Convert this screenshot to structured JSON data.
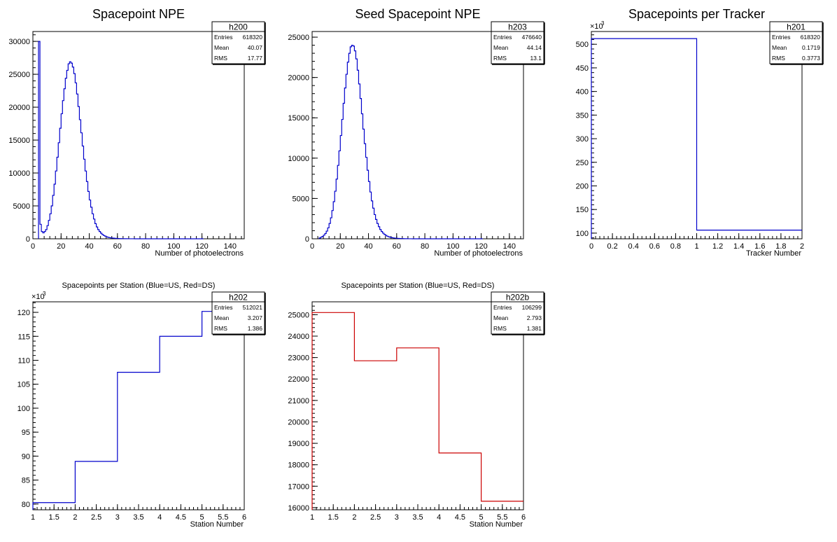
{
  "line_color_default": "#0000cc",
  "chart_data": [
    {
      "type": "histogram",
      "title": "Spacepoint NPE",
      "xlabel": "Number of photoelectrons",
      "ylabel": "",
      "xlim": [
        0,
        150
      ],
      "ylim": [
        0,
        31500
      ],
      "xticks": [
        0,
        20,
        40,
        60,
        80,
        100,
        120,
        140
      ],
      "yticks": [
        0,
        5000,
        10000,
        15000,
        20000,
        25000,
        30000
      ],
      "color": "#0000cc",
      "stats": {
        "name": "h200",
        "entries_label": "Entries",
        "entries": "618320",
        "mean_label": "Mean",
        "mean": "40.07",
        "rms_label": "RMS",
        "rms": "17.77"
      },
      "bin_width": 1,
      "x_start": 4,
      "values": [
        30000,
        2200,
        1100,
        900,
        1100,
        1400,
        2000,
        2800,
        3800,
        5000,
        6600,
        8300,
        10300,
        12400,
        14600,
        16800,
        19000,
        21000,
        22800,
        24400,
        25600,
        26600,
        26900,
        26700,
        26100,
        25100,
        23700,
        22000,
        20100,
        18100,
        16100,
        14100,
        12100,
        10300,
        8700,
        7200,
        5900,
        4800,
        3800,
        3000,
        2300,
        1800,
        1400,
        1100,
        850,
        650,
        500,
        400,
        300,
        230,
        180,
        140,
        110,
        90,
        70,
        55,
        45,
        35,
        28,
        22,
        18,
        14,
        11,
        9,
        7,
        6,
        5,
        4,
        3,
        3,
        2,
        2,
        1,
        1,
        1,
        1,
        1,
        0,
        0,
        0,
        0,
        0,
        0,
        0,
        0,
        0,
        0,
        0,
        0,
        0,
        0,
        0,
        0,
        0,
        0,
        0,
        0,
        0,
        0,
        0,
        0,
        0,
        0,
        0,
        0,
        0,
        0,
        0,
        0,
        0,
        0,
        0,
        0,
        0,
        0,
        0,
        0
      ]
    },
    {
      "type": "histogram",
      "title": "Seed Spacepoint NPE",
      "xlabel": "Number of photoelectrons",
      "ylabel": "",
      "xlim": [
        0,
        150
      ],
      "ylim": [
        0,
        25700
      ],
      "xticks": [
        0,
        20,
        40,
        60,
        80,
        100,
        120,
        140
      ],
      "yticks": [
        0,
        5000,
        10000,
        15000,
        20000,
        25000
      ],
      "color": "#0000cc",
      "stats": {
        "name": "h203",
        "entries_label": "Entries",
        "entries": "476640",
        "mean_label": "Mean",
        "mean": "44.14",
        "rms_label": "RMS",
        "rms": "13.1"
      },
      "bin_width": 1,
      "x_start": 5,
      "values": [
        100,
        200,
        300,
        450,
        650,
        950,
        1350,
        1900,
        2600,
        3500,
        4600,
        5900,
        7400,
        9100,
        10900,
        12800,
        14800,
        16800,
        18700,
        20400,
        21900,
        23000,
        23800,
        24000,
        23900,
        23300,
        22300,
        20900,
        19200,
        17400,
        15500,
        13600,
        11800,
        10100,
        8500,
        7100,
        5800,
        4700,
        3800,
        3000,
        2400,
        1900,
        1500,
        1150,
        900,
        700,
        540,
        420,
        320,
        250,
        190,
        150,
        115,
        90,
        70,
        55,
        42,
        32,
        25,
        20,
        15,
        12,
        9,
        7,
        5,
        4,
        3,
        2,
        2,
        1,
        1,
        1,
        0,
        0,
        0,
        0,
        0,
        0,
        0,
        0,
        0,
        0,
        0,
        0,
        0,
        0,
        0,
        0,
        0,
        0,
        0,
        0,
        0,
        0,
        0,
        0,
        0,
        0,
        0,
        0,
        0,
        0,
        0,
        0,
        0,
        0,
        0,
        0,
        0,
        0,
        0,
        0,
        0,
        0,
        0,
        0
      ]
    },
    {
      "type": "histogram",
      "title": "Spacepoints per Tracker",
      "xlabel": "Tracker Number",
      "ylabel": "",
      "y_multiplier": "×10",
      "y_multiplier_exp": "3",
      "xlim": [
        0,
        2
      ],
      "ylim": [
        88,
        527
      ],
      "xticks": [
        0,
        0.2,
        0.4,
        0.6,
        0.8,
        1,
        1.2,
        1.4,
        1.6,
        1.8,
        2
      ],
      "yticks": [
        100,
        150,
        200,
        250,
        300,
        350,
        400,
        450,
        500
      ],
      "color": "#0000cc",
      "stats": {
        "name": "h201",
        "entries_label": "Entries",
        "entries": "618320",
        "mean_label": "Mean",
        "mean": "0.1719",
        "rms_label": "RMS",
        "rms": "0.3773"
      },
      "bin_width": 1,
      "x_start": 0,
      "values": [
        512,
        106.3
      ]
    },
    {
      "type": "histogram",
      "title": "Spacepoints per Station (Blue=US, Red=DS)",
      "xlabel": "Station Number",
      "ylabel": "",
      "y_multiplier": "×10",
      "y_multiplier_exp": "3",
      "xlim": [
        1,
        6
      ],
      "ylim": [
        78.8,
        122.2
      ],
      "xticks": [
        1,
        1.5,
        2,
        2.5,
        3,
        3.5,
        4,
        4.5,
        5,
        5.5,
        6
      ],
      "yticks": [
        80,
        85,
        90,
        95,
        100,
        105,
        110,
        115,
        120
      ],
      "color": "#0000cc",
      "stats": {
        "name": "h202",
        "entries_label": "Entries",
        "entries": "512021",
        "mean_label": "Mean",
        "mean": "3.207",
        "rms_label": "RMS",
        "rms": "1.386"
      },
      "bin_width": 1,
      "x_start": 1,
      "values": [
        80.3,
        88.9,
        107.5,
        115,
        120.2
      ]
    },
    {
      "type": "histogram",
      "title": "Spacepoints per Station (Blue=US, Red=DS)",
      "xlabel": "Station Number",
      "ylabel": "",
      "xlim": [
        1,
        6
      ],
      "ylim": [
        15900,
        25600
      ],
      "xticks": [
        1,
        1.5,
        2,
        2.5,
        3,
        3.5,
        4,
        4.5,
        5,
        5.5,
        6
      ],
      "yticks": [
        16000,
        17000,
        18000,
        19000,
        20000,
        21000,
        22000,
        23000,
        24000,
        25000
      ],
      "color": "#cc0000",
      "stats": {
        "name": "h202b",
        "entries_label": "Entries",
        "entries": "106299",
        "mean_label": "Mean",
        "mean": "2.793",
        "rms_label": "RMS",
        "rms": "1.381"
      },
      "bin_width": 1,
      "x_start": 1,
      "values": [
        25100,
        22850,
        23450,
        18550,
        16300
      ]
    }
  ]
}
